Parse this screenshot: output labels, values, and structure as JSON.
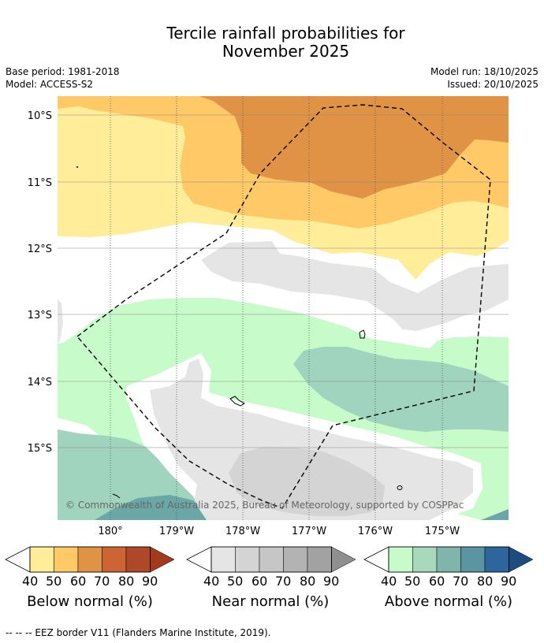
{
  "title": {
    "line1": "Tercile rainfall probabilities for",
    "line2": "November 2025"
  },
  "meta": {
    "base_period": "Base period: 1981-2018",
    "model": "Model: ACCESS-S2",
    "model_run": "Model run: 18/10/2025",
    "issued": "Issued: 20/10/2025"
  },
  "map": {
    "lat_labels": [
      "10°S",
      "11°S",
      "12°S",
      "13°S",
      "14°S",
      "15°S"
    ],
    "lon_labels": [
      "180°",
      "179°W",
      "178°W",
      "177°W",
      "176°W",
      "175°W"
    ],
    "copyright": "© Commonwealth of Australia 2025, Bureau of Meteorology, supported by COSPPac",
    "colors": {
      "below_40": "#ffed99",
      "below_50": "#fec966",
      "below_60": "#e09344",
      "near_40": "#e5e5e5",
      "near_50": "#d4d4d4",
      "above_40": "#c8fbca",
      "above_50": "#a0d4bf",
      "above_60": "#6aa7a6"
    }
  },
  "colorbars": [
    {
      "name": "below",
      "title": "Below normal (%)",
      "ticks": [
        "40",
        "50",
        "60",
        "70",
        "80",
        "90"
      ],
      "colors": [
        "#ffed99",
        "#fec966",
        "#e09344",
        "#cd6434",
        "#ae4828",
        "#a43a1d"
      ]
    },
    {
      "name": "near",
      "title": "Near normal (%)",
      "ticks": [
        "40",
        "50",
        "60",
        "70",
        "80",
        "90"
      ],
      "colors": [
        "#e5e5e5",
        "#d4d4d4",
        "#c6c6c6",
        "#b3b3b3",
        "#a2a2a2",
        "#8f8f8f"
      ]
    },
    {
      "name": "above",
      "title": "Above normal (%)",
      "ticks": [
        "40",
        "50",
        "60",
        "70",
        "80",
        "90"
      ],
      "colors": [
        "#c8fbca",
        "#a8d9bc",
        "#80b5ab",
        "#5b95a1",
        "#2e659c",
        "#1d4d80"
      ]
    }
  ],
  "footer": "--  --  -- EEZ border V11 (Flanders Marine Institute, 2019)."
}
